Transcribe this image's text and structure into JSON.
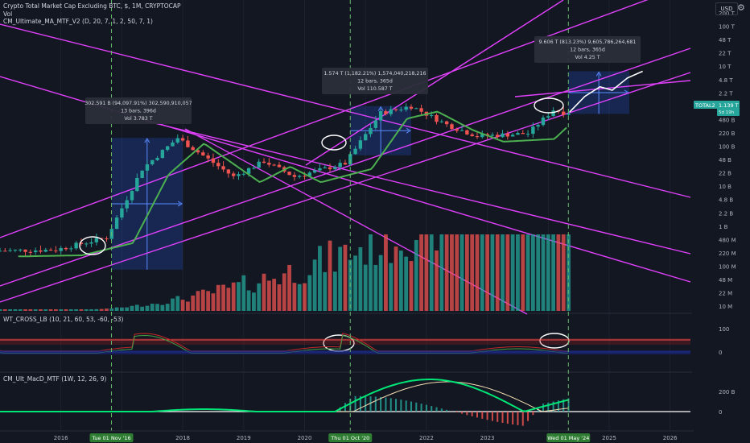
{
  "header": {
    "title": "Crypto Total Market Cap Excluding BTC, $, 1M, CRYPTOCAP",
    "vol_label": "Vol",
    "ma_indicator": "CM_Ultimate_MA_MTF_V2 (D, 20, 7, 1, 2, 50, 7, 1)",
    "wt_indicator": "WT_CROSS_LB (10, 21, 60, 53, -60, -53)",
    "macd_indicator": "CM_Ult_MacD_MTF (1W, 12, 26, 9)",
    "currency": "USD"
  },
  "colors": {
    "background": "#131722",
    "up": "#26a69a",
    "down": "#ef5350",
    "trendline": "#e040fb",
    "ma": "#4caf50",
    "projection": "#ffffff",
    "measure_box": "#2962ff"
  },
  "chart_data": [
    {
      "type": "candlestick",
      "title": "Crypto Total Market Cap Excluding BTC, $, 1M, CRYPTOCAP",
      "y_scale": "log",
      "price_axis_ticks": [
        "200 T",
        "100 T",
        "48 T",
        "22 T",
        "10 T",
        "4.8 T",
        "2.2 T",
        "1 T",
        "480 B",
        "220 B",
        "100 B",
        "48 B",
        "22 B",
        "10 B",
        "4.8 B",
        "2.2 B",
        "1 B",
        "480 M",
        "220 M",
        "100 M",
        "48 M",
        "22 M",
        "10 M"
      ],
      "time_axis_ticks": [
        "2016",
        "2018",
        "2019",
        "2020",
        "2022",
        "2023",
        "2025",
        "2026"
      ],
      "time_axis_highlights": [
        "Tue 01 Nov '16",
        "Thu 01 Oct '20",
        "Wed 01 May '24"
      ],
      "last_price_label": "TOTAL2",
      "last_price": "1.139 T",
      "last_price_countdown": "5d 19h",
      "approx_path_billions": [
        [
          "2015-01",
          0.85
        ],
        [
          "2016-01",
          0.9
        ],
        [
          "2016-11",
          1.7
        ],
        [
          "2017-06",
          60
        ],
        [
          "2018-01",
          300
        ],
        [
          "2018-12",
          40
        ],
        [
          "2019-06",
          90
        ],
        [
          "2019-12",
          40
        ],
        [
          "2020-10",
          80
        ],
        [
          "2021-05",
          1100
        ],
        [
          "2021-11",
          1574
        ],
        [
          "2022-06",
          600
        ],
        [
          "2022-12",
          330
        ],
        [
          "2023-10",
          380
        ],
        [
          "2024-03",
          1300
        ],
        [
          "2024-05",
          1139
        ]
      ],
      "measurements": [
        {
          "text1": "302.591 B (94,097.91%) 302,590,910,057",
          "text2": "13 bars, 396d",
          "text3": "Vol 3.783 T"
        },
        {
          "text1": "1.574 T (1,182.21%) 1,574,040,218,216",
          "text2": "12 bars, 365d",
          "text3": "Vol 110.587 T"
        },
        {
          "text1": "9.606 T (813.23%) 9,605,786,264,681",
          "text2": "12 bars, 365d",
          "text3": "Vol 4.25 T"
        }
      ]
    },
    {
      "type": "oscillator",
      "name": "WT_CROSS_LB",
      "axis_ticks": [
        "100",
        "0"
      ]
    },
    {
      "type": "bar",
      "name": "CM_Ult_MacD_MTF",
      "axis_ticks": [
        "200 B",
        "0"
      ]
    }
  ]
}
